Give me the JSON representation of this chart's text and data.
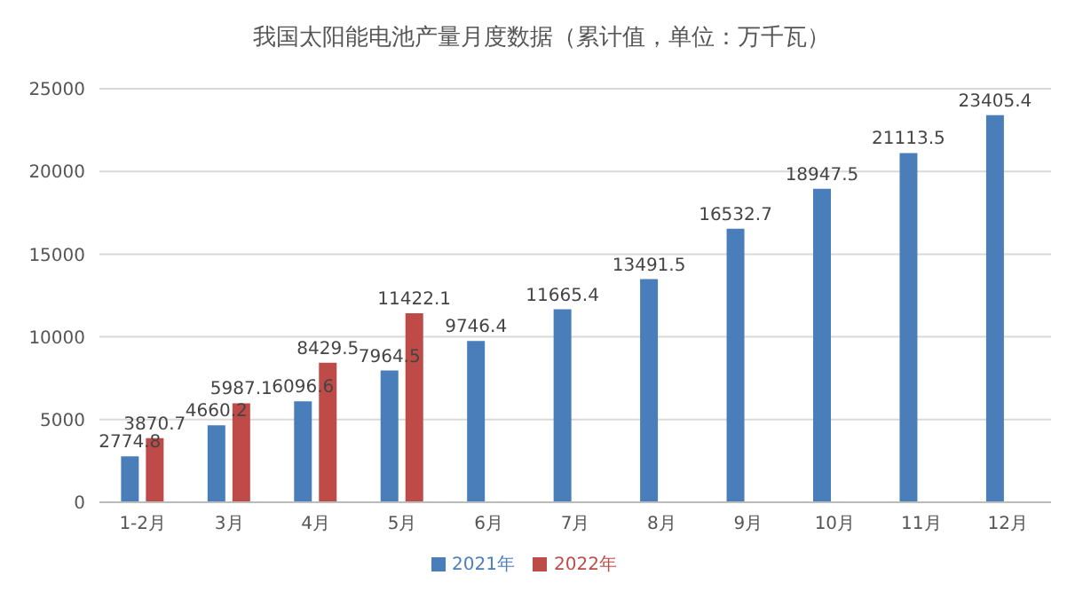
{
  "chart_data": {
    "type": "bar",
    "title": "我国太阳能电池产量月度数据（累计值，单位：万千瓦）",
    "categories": [
      "1-2月",
      "3月",
      "4月",
      "5月",
      "6月",
      "7月",
      "8月",
      "9月",
      "10月",
      "11月",
      "12月"
    ],
    "series": [
      {
        "name": "2021年",
        "color": "#4a7ebb",
        "values": [
          2774.8,
          4660.2,
          6096.6,
          7964.5,
          9746.4,
          11665.4,
          13491.5,
          16532.7,
          18947.5,
          21113.5,
          23405.4
        ]
      },
      {
        "name": "2022年",
        "color": "#be4b48",
        "values": [
          3870.7,
          5987.1,
          8429.5,
          11422.1,
          null,
          null,
          null,
          null,
          null,
          null,
          null
        ]
      }
    ],
    "ylim": [
      0,
      25000
    ],
    "yticks": [
      0,
      5000,
      10000,
      15000,
      20000,
      25000
    ],
    "grid": "y",
    "legend": "bottom",
    "data_labels": true
  }
}
